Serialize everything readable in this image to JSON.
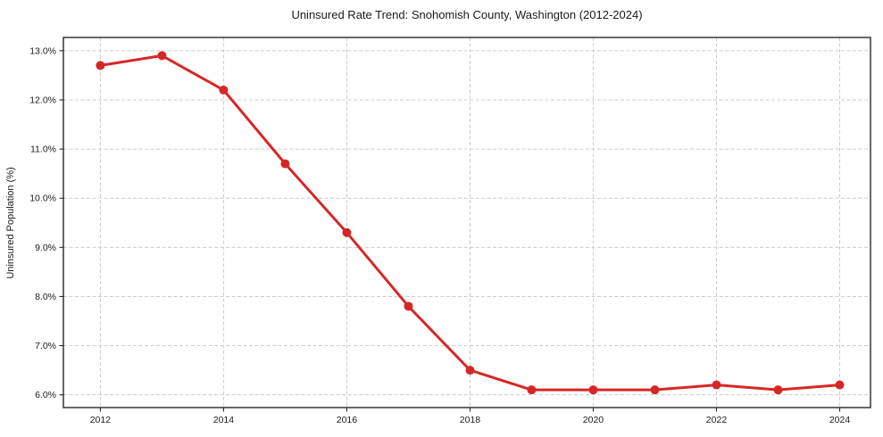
{
  "figure": {
    "background": "#ffffff"
  },
  "chart_data": {
    "type": "line",
    "title": "Uninsured Rate Trend: Snohomish County, Washington (2012-2024)",
    "xlabel": "",
    "ylabel": "Uninsured Population (%)",
    "x": [
      2012,
      2013,
      2014,
      2015,
      2016,
      2017,
      2018,
      2019,
      2020,
      2021,
      2022,
      2023,
      2024
    ],
    "values": [
      12.7,
      12.9,
      12.2,
      10.7,
      9.3,
      7.8,
      6.5,
      6.1,
      6.1,
      6.1,
      6.2,
      6.1,
      6.2
    ],
    "x_ticks": [
      2012,
      2014,
      2016,
      2018,
      2020,
      2022,
      2024
    ],
    "x_tick_labels": [
      "2012",
      "2014",
      "2016",
      "2018",
      "2020",
      "2022",
      "2024"
    ],
    "y_ticks": [
      6,
      7,
      8,
      9,
      10,
      11,
      12,
      13
    ],
    "y_tick_labels": [
      "6.0%",
      "7.0%",
      "8.0%",
      "9.0%",
      "10.0%",
      "11.0%",
      "12.0%",
      "13.0%"
    ],
    "xlim": [
      2011.4,
      2024.5
    ],
    "ylim": [
      5.74,
      13.27
    ],
    "grid": true,
    "grid_style": "dashed",
    "grid_color": "#cccccc",
    "line_color": "#d62728",
    "marker": "circle",
    "marker_radius": 5,
    "legend_position": "none"
  }
}
